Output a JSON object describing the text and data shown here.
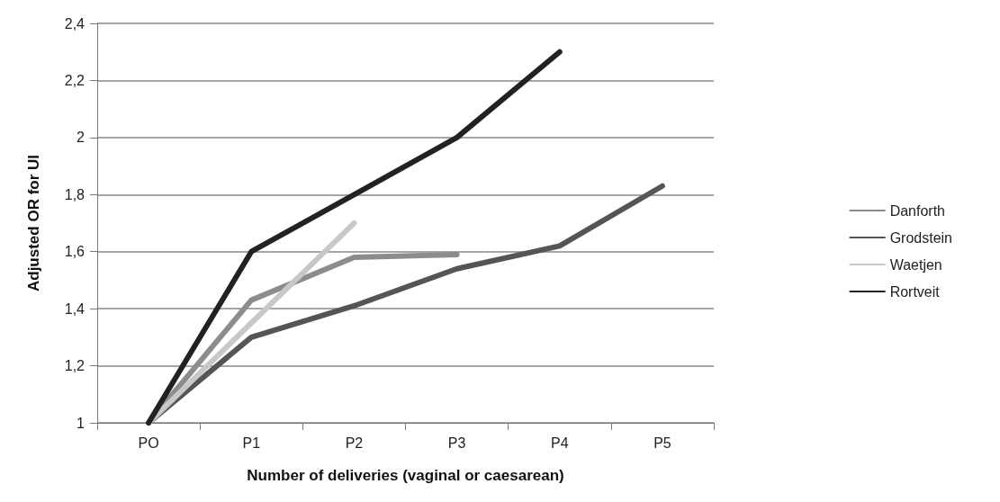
{
  "chart_data": {
    "type": "line",
    "xlabel": "Number of deliveries (vaginal or caesarean)",
    "ylabel": "Adjusted OR for UI",
    "categories": [
      "PO",
      "P1",
      "P2",
      "P3",
      "P4",
      "P5"
    ],
    "series": [
      {
        "name": "Danforth",
        "color": "#8c8c8c",
        "values": [
          1,
          1.43,
          1.58,
          1.59,
          null,
          null
        ]
      },
      {
        "name": "Grodstein",
        "color": "#555555",
        "values": [
          1,
          1.3,
          1.41,
          1.54,
          1.62,
          1.83
        ]
      },
      {
        "name": "Waetjen",
        "color": "#c8c8c8",
        "values": [
          1,
          1.35,
          1.7,
          null,
          null,
          null
        ]
      },
      {
        "name": "Rortveit",
        "color": "#222222",
        "values": [
          1,
          1.6,
          1.8,
          2.0,
          2.3,
          null
        ]
      }
    ],
    "ylim": [
      1,
      2.4
    ],
    "yticks": [
      1,
      {
        "value": 1.2,
        "label": "1,2"
      },
      {
        "value": 1.4,
        "label": "1,4"
      },
      {
        "value": 1.6,
        "label": "1,6"
      },
      {
        "value": 1.8,
        "label": "1,8"
      },
      2,
      {
        "value": 2.2,
        "label": "2,2"
      },
      {
        "value": 2.4,
        "label": "2,4"
      }
    ],
    "grid": "y",
    "legend": "right",
    "marker": "none",
    "line_style": "solid"
  }
}
